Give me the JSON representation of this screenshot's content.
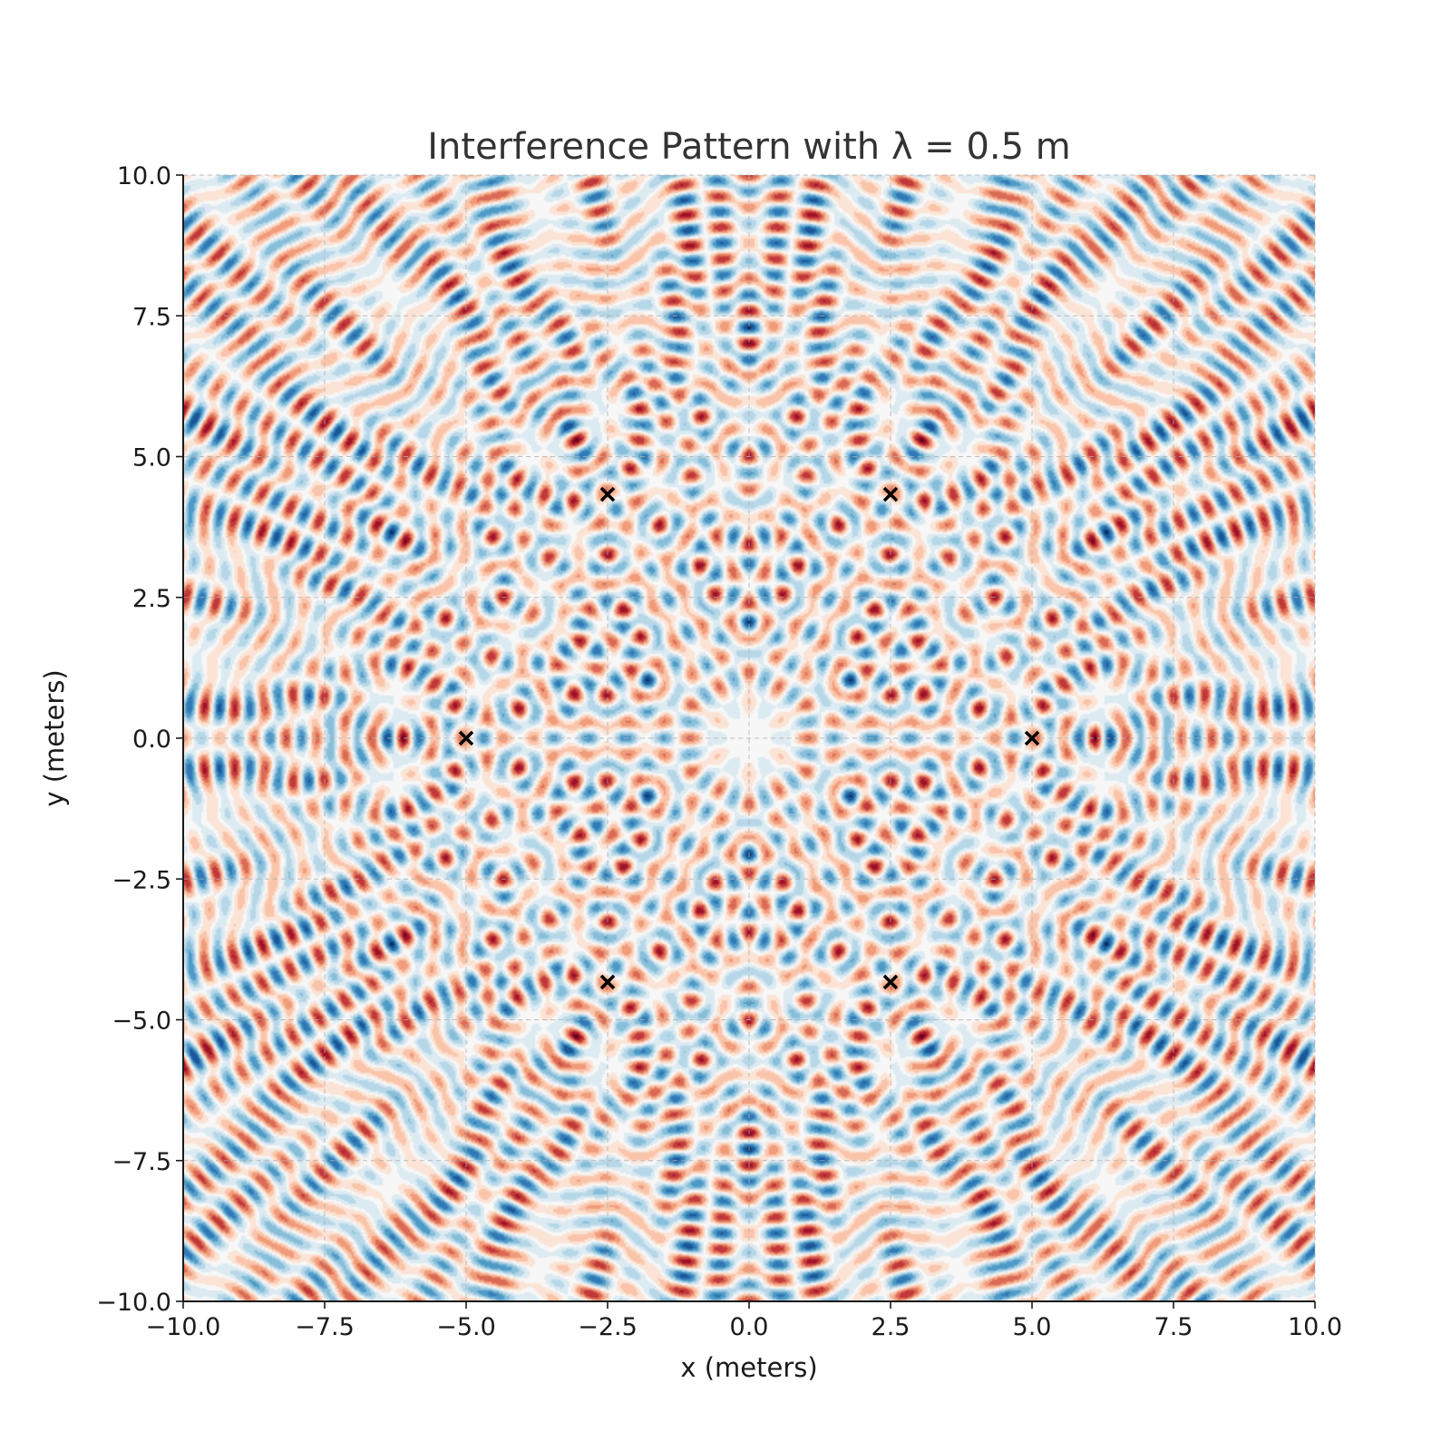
{
  "chart_data": {
    "type": "heatmap",
    "title": "Interference Pattern with λ = 0.5 m",
    "xlabel": "x (meters)",
    "ylabel": "y (meters)",
    "xlim": [
      -10,
      10
    ],
    "ylim": [
      -10,
      10
    ],
    "x_ticks": [
      -10.0,
      -7.5,
      -5.0,
      -2.5,
      0.0,
      2.5,
      5.0,
      7.5,
      10.0
    ],
    "y_ticks": [
      -10.0,
      -7.5,
      -5.0,
      -2.5,
      0.0,
      2.5,
      5.0,
      7.5,
      10.0
    ],
    "x_tick_labels": [
      "−10.0",
      "−7.5",
      "−5.0",
      "−2.5",
      "0.0",
      "2.5",
      "5.0",
      "7.5",
      "10.0"
    ],
    "y_tick_labels": [
      "−10.0",
      "−7.5",
      "−5.0",
      "−2.5",
      "0.0",
      "2.5",
      "5.0",
      "7.5",
      "10.0"
    ],
    "wavelength": 0.5,
    "colormap": "RdBu",
    "grid": true,
    "sources": [
      {
        "x": 5.0,
        "y": 0.0
      },
      {
        "x": 2.5,
        "y": 4.33
      },
      {
        "x": -2.5,
        "y": 4.33
      },
      {
        "x": -5.0,
        "y": 0.0
      },
      {
        "x": -2.5,
        "y": -4.33
      },
      {
        "x": 2.5,
        "y": -4.33
      }
    ],
    "source_marker": "x",
    "source_color": "#000000"
  }
}
